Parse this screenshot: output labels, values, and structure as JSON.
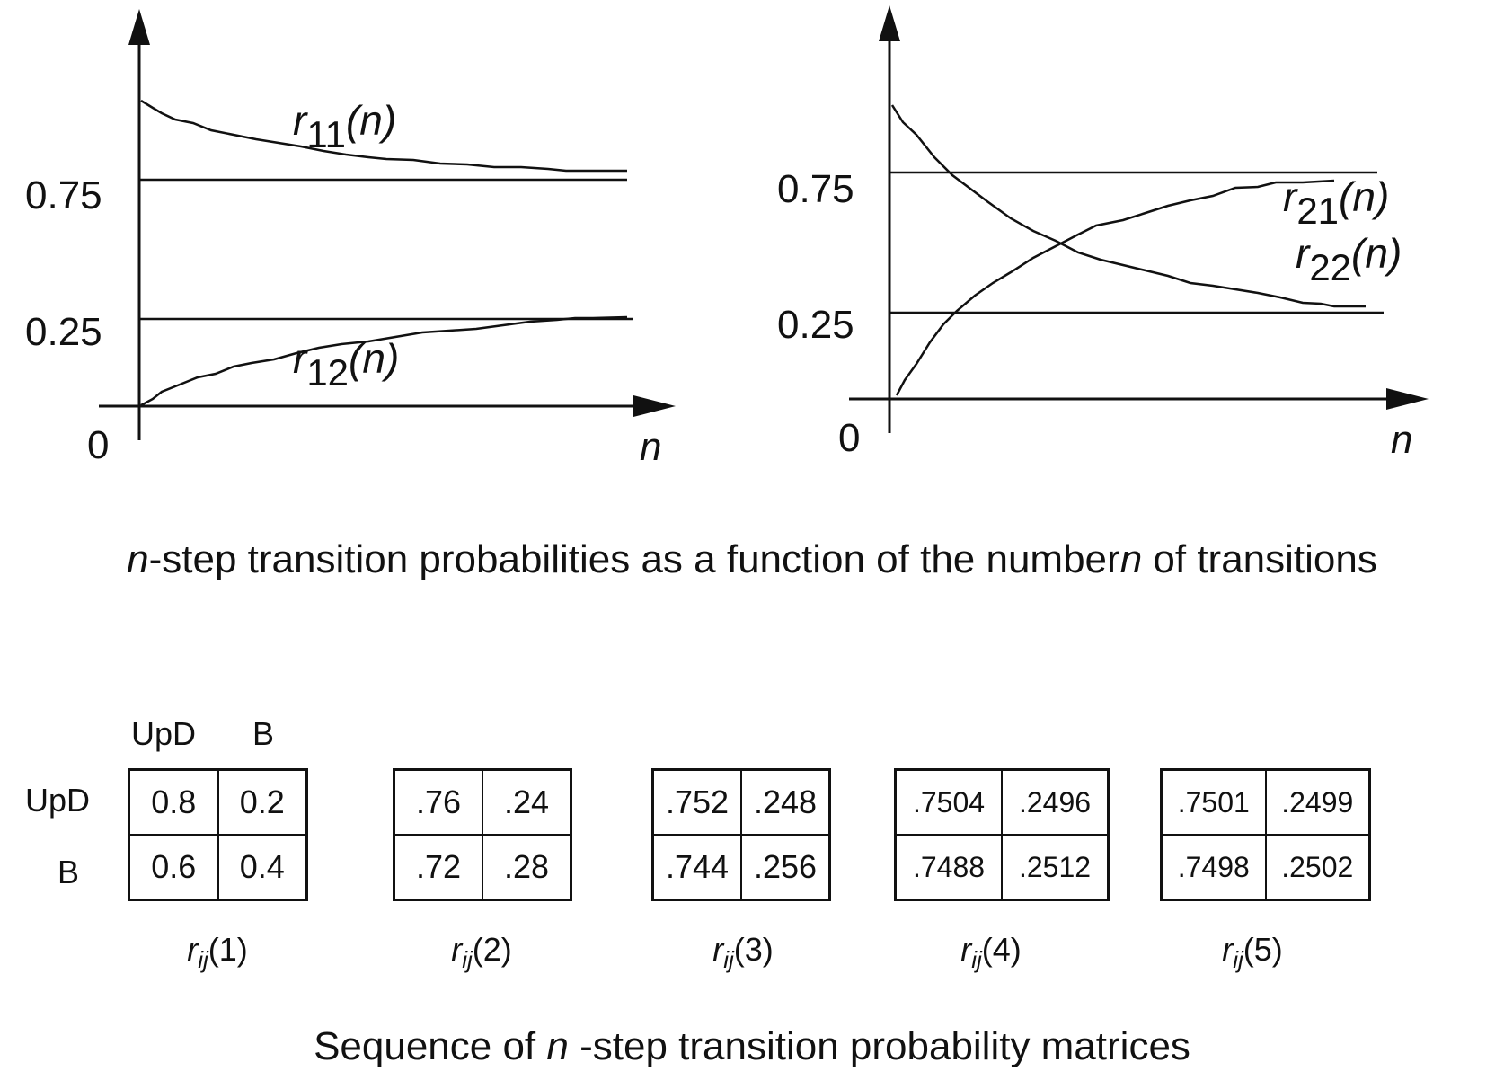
{
  "left_plot": {
    "y_ticks": [
      "0.75",
      "0.25"
    ],
    "origin": "0",
    "x_label": "n",
    "curve_top": {
      "base": "r",
      "sub": "11",
      "arg": "(n)"
    },
    "curve_bottom": {
      "base": "r",
      "sub": "12",
      "arg": "(n)"
    }
  },
  "right_plot": {
    "y_ticks": [
      "0.75",
      "0.25"
    ],
    "origin": "0",
    "x_label": "n",
    "curve_rising": {
      "base": "r",
      "sub": "21",
      "arg": "(n)"
    },
    "curve_falling": {
      "base": "r",
      "sub": "22",
      "arg": "(n)"
    }
  },
  "caption_top": {
    "prefix": "n",
    "text": "-step transition probabilities as a function of the  number",
    "var": "n",
    "suffix": " of transitions"
  },
  "matrices": {
    "col_headers": [
      "UpD",
      "B"
    ],
    "row_headers": [
      "UpD",
      "B"
    ],
    "items": [
      {
        "cells": [
          [
            "0.8",
            "0.2"
          ],
          [
            "0.6",
            "0.4"
          ]
        ],
        "label_base": "r",
        "label_sub": "ij",
        "label_arg": "(1)"
      },
      {
        "cells": [
          [
            ".76",
            ".24"
          ],
          [
            ".72",
            ".28"
          ]
        ],
        "label_base": "r",
        "label_sub": "ij",
        "label_arg": "(2)"
      },
      {
        "cells": [
          [
            ".752",
            ".248"
          ],
          [
            ".744",
            ".256"
          ]
        ],
        "label_base": "r",
        "label_sub": "ij",
        "label_arg": "(3)"
      },
      {
        "cells": [
          [
            ".7504",
            ".2496"
          ],
          [
            ".7488",
            ".2512"
          ]
        ],
        "label_base": "r",
        "label_sub": "ij",
        "label_arg": "(4)"
      },
      {
        "cells": [
          [
            ".7501",
            ".2499"
          ],
          [
            ".7498",
            ".2502"
          ]
        ],
        "label_base": "r",
        "label_sub": "ij",
        "label_arg": "(5)"
      }
    ]
  },
  "caption_bottom": {
    "text": "Sequence of ",
    "var": "n",
    "suffix": " -step transition probability matrices"
  }
}
